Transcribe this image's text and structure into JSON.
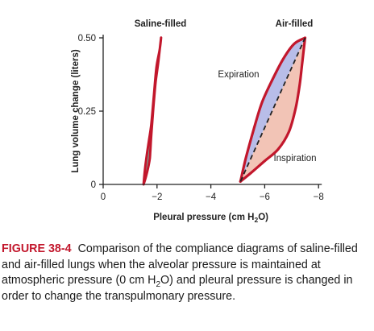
{
  "chart_data": {
    "type": "line",
    "ylabel": "Lung volume change (liters)",
    "xlabel_parts": [
      "Pleural pressure (cm H",
      "2",
      "O)"
    ],
    "x_ticks": [
      "0",
      "−2",
      "−4",
      "−6",
      "−8"
    ],
    "x_tick_values": [
      0,
      -2,
      -4,
      -6,
      -8
    ],
    "y_ticks": [
      "0",
      "0.25",
      "0.50"
    ],
    "y_tick_values": [
      0,
      0.25,
      0.5
    ],
    "xlim": [
      0,
      -8
    ],
    "ylim": [
      0,
      0.5
    ],
    "grid": false,
    "panel_labels": {
      "saline": "Saline-filled",
      "air": "Air-filled"
    },
    "loop_labels": {
      "expiration": "Expiration",
      "inspiration": "Inspiration"
    },
    "colors": {
      "loop_outline": "#c2172c",
      "saline_fill": "#7aa596",
      "expiration_fill": "#b8bde8",
      "inspiration_fill": "#f2c4b6",
      "axis": "#222222",
      "dashed_line": "#222222"
    },
    "series": [
      {
        "name": "Saline-filled",
        "x": [
          -1.5,
          -1.55,
          -1.62,
          -1.7,
          -1.78,
          -1.88,
          -1.98,
          -2.1,
          -2.15,
          -2.05,
          -1.95,
          -1.88,
          -1.83,
          -1.78,
          -1.75,
          -1.72,
          -1.6,
          -1.5
        ],
        "y": [
          0.0,
          0.05,
          0.1,
          0.15,
          0.2,
          0.3,
          0.4,
          0.46,
          0.5,
          0.42,
          0.35,
          0.28,
          0.22,
          0.16,
          0.11,
          0.08,
          0.03,
          0.0
        ]
      },
      {
        "name": "Expiration",
        "x": [
          -5.1,
          -5.3,
          -5.6,
          -5.9,
          -6.3,
          -6.7,
          -7.1,
          -7.5
        ],
        "y": [
          0.01,
          0.09,
          0.19,
          0.28,
          0.36,
          0.43,
          0.48,
          0.5
        ]
      },
      {
        "name": "Inspiration",
        "x": [
          -5.1,
          -5.5,
          -6.0,
          -6.5,
          -6.9,
          -7.15,
          -7.3,
          -7.4,
          -7.5
        ],
        "y": [
          0.01,
          0.04,
          0.08,
          0.12,
          0.18,
          0.26,
          0.34,
          0.42,
          0.5
        ]
      }
    ]
  },
  "caption": {
    "label": "FIGURE 38-4",
    "text_before_sub": "Comparison of the compliance diagrams of saline-filled and air-filled lungs when the alveolar pressure is maintained at atmospheric pressure (0 cm H",
    "sub": "2",
    "text_after_sub": "O) and pleural pressure is changed in order to change the transpulmonary pressure."
  }
}
